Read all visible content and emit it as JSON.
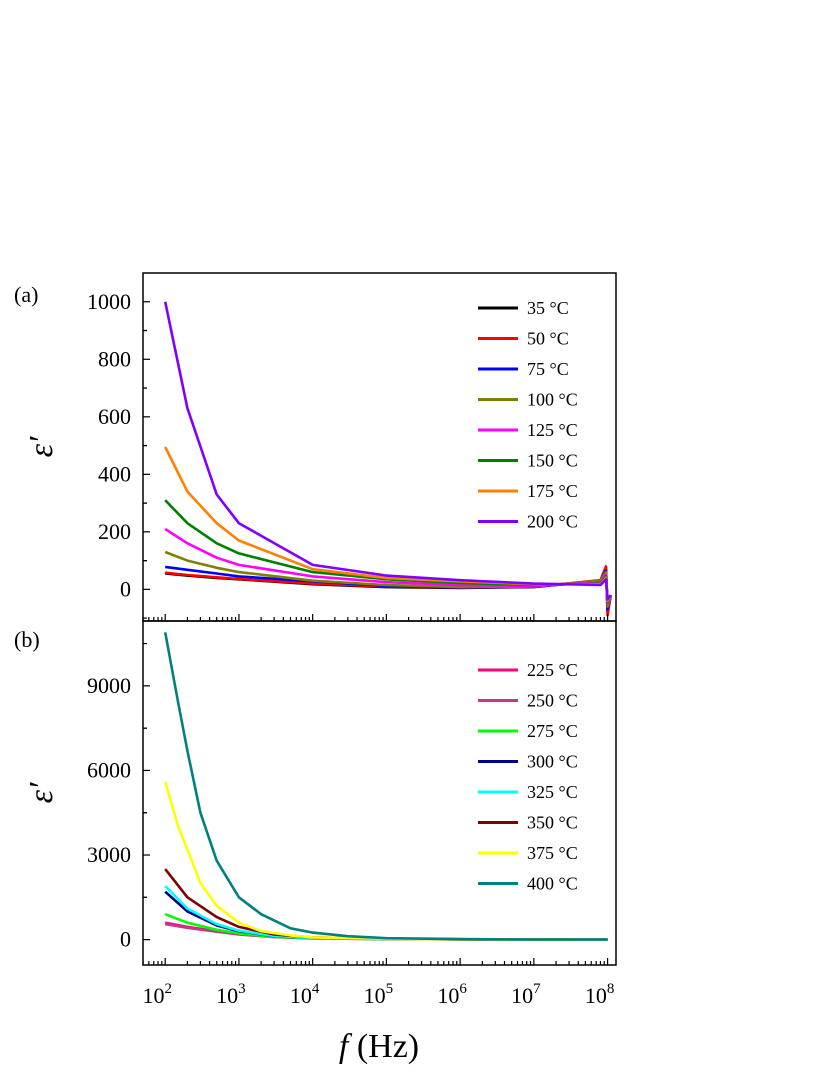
{
  "chart_data": [
    {
      "panel": "(a)",
      "type": "line",
      "x_scale": "log",
      "xlim": [
        50,
        130000000
      ],
      "ylim": [
        -110,
        1100
      ],
      "ylabel": "ε′",
      "y_ticks": [
        0,
        200,
        400,
        600,
        800,
        1000
      ],
      "legend": "top-right",
      "grid": false,
      "series": [
        {
          "name": "35 °C",
          "color": "#000000",
          "x": [
            100,
            200,
            500,
            1000,
            10000,
            100000,
            1000000,
            10000000,
            80000000,
            95000000,
            100000000,
            110000000
          ],
          "y": [
            55,
            48,
            40,
            35,
            18,
            8,
            5,
            8,
            30,
            70,
            -80,
            -20
          ]
        },
        {
          "name": "50 °C",
          "color": "#ff0000",
          "x": [
            100,
            200,
            500,
            1000,
            10000,
            100000,
            1000000,
            10000000,
            80000000,
            95000000,
            100000000,
            110000000
          ],
          "y": [
            58,
            50,
            42,
            36,
            20,
            10,
            6,
            9,
            32,
            80,
            -90,
            -20
          ]
        },
        {
          "name": "75 °C",
          "color": "#0000ff",
          "x": [
            100,
            200,
            500,
            1000,
            10000,
            100000,
            1000000,
            10000000,
            80000000,
            95000000,
            100000000,
            110000000
          ],
          "y": [
            78,
            68,
            55,
            45,
            28,
            12,
            7,
            9,
            30,
            65,
            -70,
            -20
          ]
        },
        {
          "name": "100 °C",
          "color": "#808000",
          "x": [
            100,
            200,
            500,
            1000,
            10000,
            100000,
            1000000,
            10000000,
            80000000,
            95000000,
            100000000,
            110000000
          ],
          "y": [
            130,
            100,
            75,
            60,
            30,
            15,
            8,
            10,
            30,
            60,
            -60,
            -20
          ]
        },
        {
          "name": "125 °C",
          "color": "#ff00ff",
          "x": [
            100,
            200,
            500,
            1000,
            10000,
            100000,
            1000000,
            10000000,
            80000000,
            95000000,
            100000000,
            110000000
          ],
          "y": [
            210,
            160,
            110,
            85,
            45,
            25,
            15,
            12,
            25,
            50,
            -50,
            -20
          ]
        },
        {
          "name": "150 °C",
          "color": "#008000",
          "x": [
            100,
            200,
            500,
            1000,
            10000,
            100000,
            1000000,
            10000000,
            80000000,
            95000000,
            100000000,
            110000000
          ],
          "y": [
            310,
            230,
            160,
            125,
            60,
            35,
            22,
            15,
            20,
            45,
            -45,
            -20
          ]
        },
        {
          "name": "175 °C",
          "color": "#ff8000",
          "x": [
            100,
            200,
            500,
            1000,
            10000,
            100000,
            1000000,
            10000000,
            80000000,
            95000000,
            100000000,
            110000000
          ],
          "y": [
            495,
            340,
            230,
            170,
            70,
            40,
            28,
            18,
            18,
            40,
            -40,
            -20
          ]
        },
        {
          "name": "200 °C",
          "color": "#8000ff",
          "x": [
            100,
            200,
            500,
            1000,
            10000,
            100000,
            1000000,
            10000000,
            80000000,
            95000000,
            100000000,
            110000000
          ],
          "y": [
            1000,
            630,
            330,
            230,
            85,
            48,
            32,
            20,
            15,
            35,
            -35,
            -20
          ]
        }
      ]
    },
    {
      "panel": "(b)",
      "type": "line",
      "x_scale": "log",
      "xlim": [
        50,
        130000000
      ],
      "ylim": [
        -900,
        11300
      ],
      "ylabel": "ε′",
      "y_ticks": [
        0,
        3000,
        6000,
        9000
      ],
      "xlabel_italic": "f",
      "xlabel_rest": " (Hz)",
      "x_ticks": [
        {
          "base": "10",
          "exp": "2",
          "value": 100
        },
        {
          "base": "10",
          "exp": "3",
          "value": 1000
        },
        {
          "base": "10",
          "exp": "4",
          "value": 10000
        },
        {
          "base": "10",
          "exp": "5",
          "value": 100000
        },
        {
          "base": "10",
          "exp": "6",
          "value": 1000000
        },
        {
          "base": "10",
          "exp": "7",
          "value": 10000000
        },
        {
          "base": "10",
          "exp": "8",
          "value": 100000000
        }
      ],
      "legend": "top-right",
      "grid": false,
      "series": [
        {
          "name": "225 °C",
          "color": "#ff0080",
          "x": [
            100,
            200,
            500,
            1000,
            3000,
            10000,
            100000,
            1000000,
            10000000,
            100000000
          ],
          "y": [
            600,
            450,
            300,
            200,
            100,
            50,
            20,
            10,
            5,
            0
          ]
        },
        {
          "name": "250 °C",
          "color": "#c03a8a",
          "x": [
            100,
            200,
            500,
            1000,
            3000,
            10000,
            100000,
            1000000,
            10000000,
            100000000
          ],
          "y": [
            550,
            420,
            280,
            180,
            90,
            40,
            18,
            10,
            5,
            0
          ]
        },
        {
          "name": "275 °C",
          "color": "#00ff00",
          "x": [
            100,
            200,
            500,
            1000,
            3000,
            10000,
            100000,
            1000000,
            10000000,
            100000000
          ],
          "y": [
            900,
            600,
            350,
            220,
            100,
            50,
            20,
            10,
            5,
            0
          ]
        },
        {
          "name": "300 °C",
          "color": "#000080",
          "x": [
            100,
            200,
            500,
            1000,
            3000,
            10000,
            100000,
            1000000,
            10000000,
            100000000
          ],
          "y": [
            1700,
            1000,
            500,
            300,
            120,
            60,
            25,
            10,
            5,
            0
          ]
        },
        {
          "name": "325 °C",
          "color": "#00ffff",
          "x": [
            100,
            200,
            500,
            1000,
            3000,
            10000,
            100000,
            1000000,
            10000000,
            100000000
          ],
          "y": [
            1900,
            1100,
            550,
            320,
            130,
            60,
            25,
            10,
            5,
            0
          ]
        },
        {
          "name": "350 °C",
          "color": "#800000",
          "x": [
            100,
            200,
            500,
            1000,
            3000,
            10000,
            100000,
            1000000,
            10000000,
            100000000
          ],
          "y": [
            2500,
            1500,
            800,
            450,
            180,
            80,
            30,
            12,
            5,
            0
          ]
        },
        {
          "name": "375 °C",
          "color": "#ffff00",
          "x": [
            100,
            150,
            200,
            300,
            500,
            1000,
            2000,
            5000,
            10000,
            100000,
            1000000,
            10000000,
            100000000
          ],
          "y": [
            5600,
            4000,
            3200,
            2000,
            1200,
            600,
            300,
            150,
            80,
            30,
            12,
            5,
            0
          ]
        },
        {
          "name": "400 °C",
          "color": "#008080",
          "x": [
            100,
            150,
            200,
            300,
            500,
            1000,
            2000,
            5000,
            10000,
            30000,
            100000,
            1000000,
            10000000,
            100000000
          ],
          "y": [
            10900,
            8400,
            6700,
            4500,
            2800,
            1500,
            900,
            400,
            250,
            120,
            50,
            20,
            5,
            0
          ]
        }
      ]
    }
  ]
}
